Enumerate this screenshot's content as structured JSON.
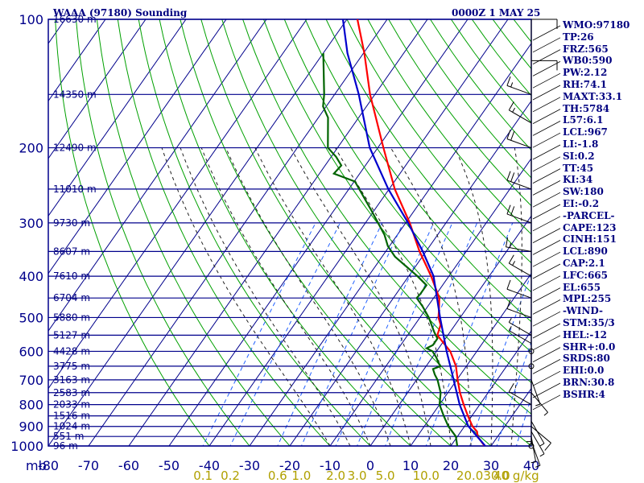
{
  "header": {
    "station": "WAAA (97180) Sounding",
    "time": "0000Z  1 MAY 25"
  },
  "colors": {
    "frame": "#00008b",
    "isobar": "#00008b",
    "isotherm": "#00008b",
    "dry_adiabat": "#00a000",
    "mixing_ratio": "#2060ff",
    "moist_adiabat": "#202020",
    "temperature": "#ff0000",
    "dewpoint": "#006400",
    "parcel": "#0000cd",
    "label": "#000080",
    "mixing_ratio_label": "#b0a000"
  },
  "chart_data": {
    "type": "skew-t",
    "ylabel": "mb",
    "pressure_levels": [
      100,
      200,
      300,
      400,
      500,
      600,
      700,
      800,
      900,
      1000
    ],
    "pressure_extra_lines": [
      150,
      250,
      350,
      450,
      550,
      650,
      750,
      850,
      950
    ],
    "temperature_ticks": [
      -80,
      -70,
      -60,
      -50,
      -40,
      -30,
      -20,
      -10,
      0,
      10,
      20,
      30,
      40
    ],
    "xlim": [
      -80,
      40
    ],
    "ylim": [
      1000,
      100
    ],
    "heights": [
      {
        "p": 100,
        "label": "16630 m"
      },
      {
        "p": 150,
        "label": "14350 m"
      },
      {
        "p": 200,
        "label": "12490 m"
      },
      {
        "p": 250,
        "label": "11010 m"
      },
      {
        "p": 300,
        "label": "9730 m"
      },
      {
        "p": 350,
        "label": "8607 m"
      },
      {
        "p": 400,
        "label": "7610 m"
      },
      {
        "p": 450,
        "label": "6704 m"
      },
      {
        "p": 500,
        "label": "5880 m"
      },
      {
        "p": 550,
        "label": "5127 m"
      },
      {
        "p": 600,
        "label": "4428 m"
      },
      {
        "p": 650,
        "label": "3775 m"
      },
      {
        "p": 700,
        "label": "3163 m"
      },
      {
        "p": 750,
        "label": "2583 m"
      },
      {
        "p": 800,
        "label": "2033 m"
      },
      {
        "p": 850,
        "label": "1516 m"
      },
      {
        "p": 900,
        "label": "1024 m"
      },
      {
        "p": 950,
        "label": "551 m"
      },
      {
        "p": 1000,
        "label": "96 m"
      }
    ],
    "mixing_ratio_labels": [
      "0.1",
      "0.2",
      "0.6",
      "1.0",
      "2.0",
      "3.0",
      "5.0",
      "10.0",
      "20.0",
      "30.0",
      "40 g/kg"
    ],
    "mixing_ratio_values": [
      0.1,
      0.2,
      0.6,
      1.0,
      2.0,
      3.0,
      5.0,
      10.0,
      20.0,
      30.0,
      40.0
    ],
    "series": [
      {
        "key": "temperature",
        "points": [
          [
            1006,
            29
          ],
          [
            1000,
            28.4
          ],
          [
            950,
            25
          ],
          [
            925,
            24
          ],
          [
            900,
            22
          ],
          [
            850,
            19
          ],
          [
            800,
            16
          ],
          [
            750,
            13
          ],
          [
            700,
            10.2
          ],
          [
            650,
            7.4
          ],
          [
            600,
            3.4
          ],
          [
            550,
            -2.6
          ],
          [
            520,
            -3.6
          ],
          [
            500,
            -5.4
          ],
          [
            480,
            -6.6
          ],
          [
            450,
            -8.6
          ],
          [
            400,
            -14.4
          ],
          [
            350,
            -21.6
          ],
          [
            300,
            -29
          ],
          [
            250,
            -38.6
          ],
          [
            200,
            -48.6
          ],
          [
            150,
            -61.2
          ],
          [
            120,
            -69.8
          ],
          [
            100,
            -77.4
          ]
        ]
      },
      {
        "key": "dewpoint",
        "points": [
          [
            1006,
            22
          ],
          [
            1000,
            21.6
          ],
          [
            950,
            19.6
          ],
          [
            900,
            16
          ],
          [
            850,
            13
          ],
          [
            800,
            10
          ],
          [
            750,
            8.2
          ],
          [
            700,
            5.2
          ],
          [
            680,
            3.6
          ],
          [
            660,
            2.2
          ],
          [
            650,
            3.6
          ],
          [
            640,
            2.6
          ],
          [
            620,
            1
          ],
          [
            600,
            -1
          ],
          [
            590,
            -3
          ],
          [
            580,
            -2
          ],
          [
            560,
            -2
          ],
          [
            540,
            -4
          ],
          [
            500,
            -7.8
          ],
          [
            470,
            -11.4
          ],
          [
            450,
            -14.2
          ],
          [
            440,
            -14
          ],
          [
            420,
            -14
          ],
          [
            400,
            -17.8
          ],
          [
            360,
            -26.8
          ],
          [
            340,
            -30.4
          ],
          [
            320,
            -33.2
          ],
          [
            280,
            -40.8
          ],
          [
            240,
            -49.8
          ],
          [
            230,
            -56.4
          ],
          [
            220,
            -56
          ],
          [
            210,
            -58.8
          ],
          [
            200,
            -62.4
          ],
          [
            170,
            -67.6
          ],
          [
            160,
            -70.8
          ],
          [
            150,
            -72.6
          ],
          [
            120,
            -80
          ]
        ]
      },
      {
        "key": "parcel",
        "points": [
          [
            1006,
            29
          ],
          [
            970,
            26.4
          ],
          [
            900,
            21
          ],
          [
            890,
            20.4
          ],
          [
            800,
            15
          ],
          [
            700,
            9.2
          ],
          [
            665,
            7
          ],
          [
            600,
            2.5
          ],
          [
            500,
            -5
          ],
          [
            400,
            -13.8
          ],
          [
            350,
            -20.8
          ],
          [
            300,
            -29.4
          ],
          [
            250,
            -40.2
          ],
          [
            200,
            -52
          ],
          [
            150,
            -64
          ],
          [
            120,
            -74
          ],
          [
            100,
            -81
          ]
        ]
      }
    ],
    "wind_barbs": [
      {
        "p": 1000,
        "dir": 270,
        "spd": 0
      },
      {
        "p": 975,
        "dir": 160,
        "spd": 5
      },
      {
        "p": 950,
        "dir": 170,
        "spd": 5
      },
      {
        "p": 925,
        "dir": 150,
        "spd": 5
      },
      {
        "p": 900,
        "dir": 130,
        "spd": 10
      },
      {
        "p": 875,
        "dir": 150,
        "spd": 5
      },
      {
        "p": 850,
        "dir": 180,
        "spd": 5
      },
      {
        "p": 800,
        "dir": 300,
        "spd": 10
      },
      {
        "p": 750,
        "dir": 140,
        "spd": 5
      },
      {
        "p": 700,
        "dir": 160,
        "spd": 5
      },
      {
        "p": 650,
        "dir": 270,
        "spd": 0
      },
      {
        "p": 600,
        "dir": 270,
        "spd": 0
      },
      {
        "p": 575,
        "dir": 300,
        "spd": 5
      },
      {
        "p": 550,
        "dir": 300,
        "spd": 5
      },
      {
        "p": 500,
        "dir": 290,
        "spd": 10
      },
      {
        "p": 450,
        "dir": 290,
        "spd": 10
      },
      {
        "p": 400,
        "dir": 300,
        "spd": 15
      },
      {
        "p": 350,
        "dir": 280,
        "spd": 15
      },
      {
        "p": 300,
        "dir": 290,
        "spd": 20
      },
      {
        "p": 250,
        "dir": 290,
        "spd": 20
      },
      {
        "p": 200,
        "dir": 290,
        "spd": 20
      },
      {
        "p": 175,
        "dir": 300,
        "spd": 15
      },
      {
        "p": 150,
        "dir": 290,
        "spd": 15
      },
      {
        "p": 125,
        "dir": 90,
        "spd": 10
      },
      {
        "p": 100,
        "dir": 90,
        "spd": 10
      }
    ]
  },
  "stats": [
    "WMO:97180",
    "TP:26",
    "FRZ:565",
    "WB0:590",
    "PW:2.12",
    "RH:74.1",
    "MAXT:33.1",
    "TH:5784",
    "L57:6.1",
    "LCL:967",
    "LI:-1.8",
    "SI:0.2",
    "TT:45",
    "KI:34",
    "SW:180",
    "EI:-0.2",
    "-PARCEL-",
    "CAPE:123",
    "CINH:151",
    "LCL:890",
    "CAP:2.1",
    "LFC:665",
    "EL:655",
    "MPL:255",
    "-WIND-",
    "STM:35/3",
    "HEL:-12",
    "SHR+:0.0",
    "SRDS:80",
    "EHI:0.0",
    "BRN:30.8",
    "BSHR:4"
  ]
}
